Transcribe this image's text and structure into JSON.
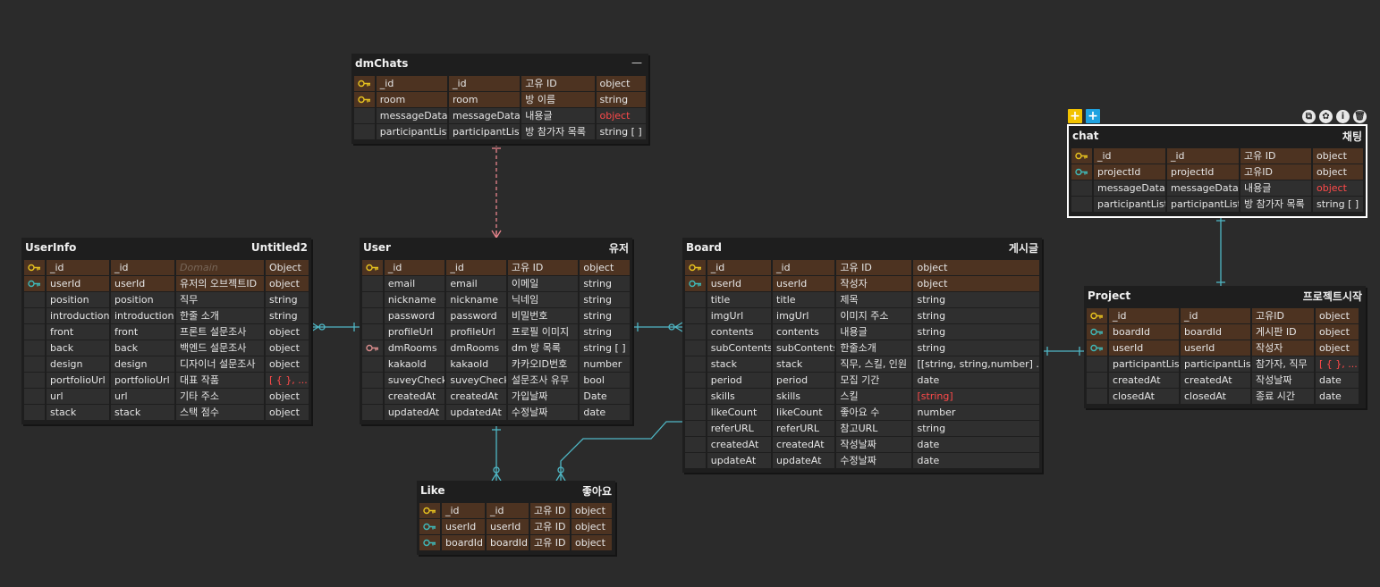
{
  "colors": {
    "background": "#2b2b2b",
    "pk_row": "#4d3321",
    "normal_row": "#2f2f2f",
    "primary_key": "#e8c31f",
    "foreign_key": "#3fb8b8",
    "other_key": "#d98c8c",
    "relation_line": "#4fb7c5",
    "selected_line": "#e8848c",
    "red_type": "#ff4a4a"
  },
  "tables": {
    "dmChats": {
      "name": "dmChats",
      "comment": "",
      "rows": [
        {
          "key": "primary",
          "cells": [
            "_id",
            "_id",
            "고유 ID",
            "object"
          ]
        },
        {
          "key": "primary",
          "cells": [
            "room",
            "room",
            "방 이름",
            "string"
          ]
        },
        {
          "key": "none",
          "cells": [
            "messageData",
            "messageData",
            "내용글",
            "object"
          ],
          "red": 3
        },
        {
          "key": "none",
          "cells": [
            "participantList",
            "participantList",
            "방 참가자 목록",
            "string [ ]"
          ]
        }
      ]
    },
    "userInfo": {
      "name": "UserInfo",
      "comment": "Untitled2",
      "rows": [
        {
          "key": "primary",
          "cells": [
            "_id",
            "_id",
            "Domain",
            "Object"
          ],
          "domain": 2
        },
        {
          "key": "foreign",
          "cells": [
            "userId",
            "userId",
            "유저의 오브젝트ID",
            "object"
          ]
        },
        {
          "key": "none",
          "cells": [
            "position",
            "position",
            "직무",
            "string"
          ]
        },
        {
          "key": "none",
          "cells": [
            "introduction",
            "introduction",
            "한줄 소개",
            "string"
          ]
        },
        {
          "key": "none",
          "cells": [
            "front",
            "front",
            "프론트 설문조사",
            "object"
          ]
        },
        {
          "key": "none",
          "cells": [
            "back",
            "back",
            "백엔드 설문조사",
            "object"
          ]
        },
        {
          "key": "none",
          "cells": [
            "design",
            "design",
            "디자이너 설문조사",
            "object"
          ]
        },
        {
          "key": "none",
          "cells": [
            "portfolioUrl",
            "portfolioUrl",
            "대표 작품",
            "[ { }, ... ]"
          ],
          "red": 3
        },
        {
          "key": "none",
          "cells": [
            "url",
            "url",
            "기타 주소",
            "object"
          ]
        },
        {
          "key": "none",
          "cells": [
            "stack",
            "stack",
            "스택 점수",
            "object"
          ]
        }
      ]
    },
    "user": {
      "name": "User",
      "comment": "유저",
      "rows": [
        {
          "key": "primary",
          "cells": [
            "_id",
            "_id",
            "고유 ID",
            "object"
          ]
        },
        {
          "key": "none",
          "cells": [
            "email",
            "email",
            "이메일",
            "string"
          ]
        },
        {
          "key": "none",
          "cells": [
            "nickname",
            "nickname",
            "닉네임",
            "string"
          ]
        },
        {
          "key": "none",
          "cells": [
            "password",
            "password",
            "비밀번호",
            "string"
          ]
        },
        {
          "key": "none",
          "cells": [
            "profileUrl",
            "profileUrl",
            "프로필 이미지",
            "string"
          ]
        },
        {
          "key": "other",
          "cells": [
            "dmRooms",
            "dmRooms",
            "dm 방 목록",
            "string [ ]"
          ]
        },
        {
          "key": "none",
          "cells": [
            "kakaoId",
            "kakaoId",
            "카카오ID번호",
            "number"
          ]
        },
        {
          "key": "none",
          "cells": [
            "suveyCheck",
            "suveyCheck",
            "설문조사 유무",
            "bool"
          ]
        },
        {
          "key": "none",
          "cells": [
            "createdAt",
            "createdAt",
            "가입날짜",
            "Date"
          ]
        },
        {
          "key": "none",
          "cells": [
            "updatedAt",
            "updatedAt",
            "수정날짜",
            "date"
          ]
        }
      ]
    },
    "board": {
      "name": "Board",
      "comment": "게시글",
      "rows": [
        {
          "key": "primary",
          "cells": [
            "_id",
            "_id",
            "고유 ID",
            "object"
          ]
        },
        {
          "key": "foreign",
          "cells": [
            "userId",
            "userId",
            "작성자",
            "object"
          ]
        },
        {
          "key": "none",
          "cells": [
            "title",
            "title",
            "제목",
            "string"
          ]
        },
        {
          "key": "none",
          "cells": [
            "imgUrl",
            "imgUrl",
            "이미지 주소",
            "string"
          ]
        },
        {
          "key": "none",
          "cells": [
            "contents",
            "contents",
            "내용글",
            "string"
          ]
        },
        {
          "key": "none",
          "cells": [
            "subContents",
            "subContents",
            "한줄소개",
            "string"
          ]
        },
        {
          "key": "none",
          "cells": [
            "stack",
            "stack",
            "직무, 스킬, 인원",
            "[[string, string,number] ...]"
          ]
        },
        {
          "key": "none",
          "cells": [
            "period",
            "period",
            "모집 기간",
            "date"
          ]
        },
        {
          "key": "none",
          "cells": [
            "skills",
            "skills",
            "스킬",
            "[string]"
          ],
          "red": 3
        },
        {
          "key": "none",
          "cells": [
            "likeCount",
            "likeCount",
            "좋아요 수",
            "number"
          ]
        },
        {
          "key": "none",
          "cells": [
            "referURL",
            "referURL",
            "참고URL",
            "string"
          ]
        },
        {
          "key": "none",
          "cells": [
            "createdAt",
            "createdAt",
            "작성날짜",
            "date"
          ]
        },
        {
          "key": "none",
          "cells": [
            "updateAt",
            "updateAt",
            "수정날짜",
            "date"
          ]
        }
      ]
    },
    "like": {
      "name": "Like",
      "comment": "좋아요",
      "rows": [
        {
          "key": "primary",
          "cells": [
            "_id",
            "_id",
            "고유 ID",
            "object"
          ]
        },
        {
          "key": "foreign",
          "cells": [
            "userId",
            "userId",
            "고유 ID",
            "object"
          ]
        },
        {
          "key": "foreign",
          "cells": [
            "boardId",
            "boardId",
            "고유 ID",
            "object"
          ]
        }
      ]
    },
    "chat": {
      "name": "chat",
      "comment": "채팅",
      "rows": [
        {
          "key": "primary",
          "cells": [
            "_id",
            "_id",
            "고유 ID",
            "object"
          ]
        },
        {
          "key": "foreign",
          "cells": [
            "projectId",
            "projectId",
            "고유ID",
            "object"
          ]
        },
        {
          "key": "none",
          "cells": [
            "messageData",
            "messageData",
            "내용글",
            "object"
          ],
          "red": 3
        },
        {
          "key": "none",
          "cells": [
            "participantList",
            "participantList",
            "방 참가자 목록",
            "string [ ]"
          ]
        }
      ]
    },
    "project": {
      "name": "Project",
      "comment": "프로젝트시작",
      "rows": [
        {
          "key": "primary",
          "cells": [
            "_id",
            "_id",
            "고유ID",
            "object"
          ]
        },
        {
          "key": "foreign",
          "cells": [
            "boardId",
            "boardId",
            "게시판 ID",
            "object"
          ]
        },
        {
          "key": "foreign",
          "cells": [
            "userId",
            "userId",
            "작성자",
            "object"
          ]
        },
        {
          "key": "none",
          "cells": [
            "participantList",
            "participantList",
            "참가자, 직무",
            "[ { }, ... ]"
          ],
          "red": 3
        },
        {
          "key": "none",
          "cells": [
            "createdAt",
            "createdAt",
            "작성날짜",
            "date"
          ]
        },
        {
          "key": "none",
          "cells": [
            "closedAt",
            "closedAt",
            "종료 시간",
            "date"
          ]
        }
      ]
    }
  },
  "toolbar": {
    "add_yellow": "+",
    "add_blue": "+",
    "icons": [
      "copy-icon",
      "palette-icon",
      "info-icon",
      "trash-icon"
    ]
  },
  "dmchats_collapse": "—"
}
